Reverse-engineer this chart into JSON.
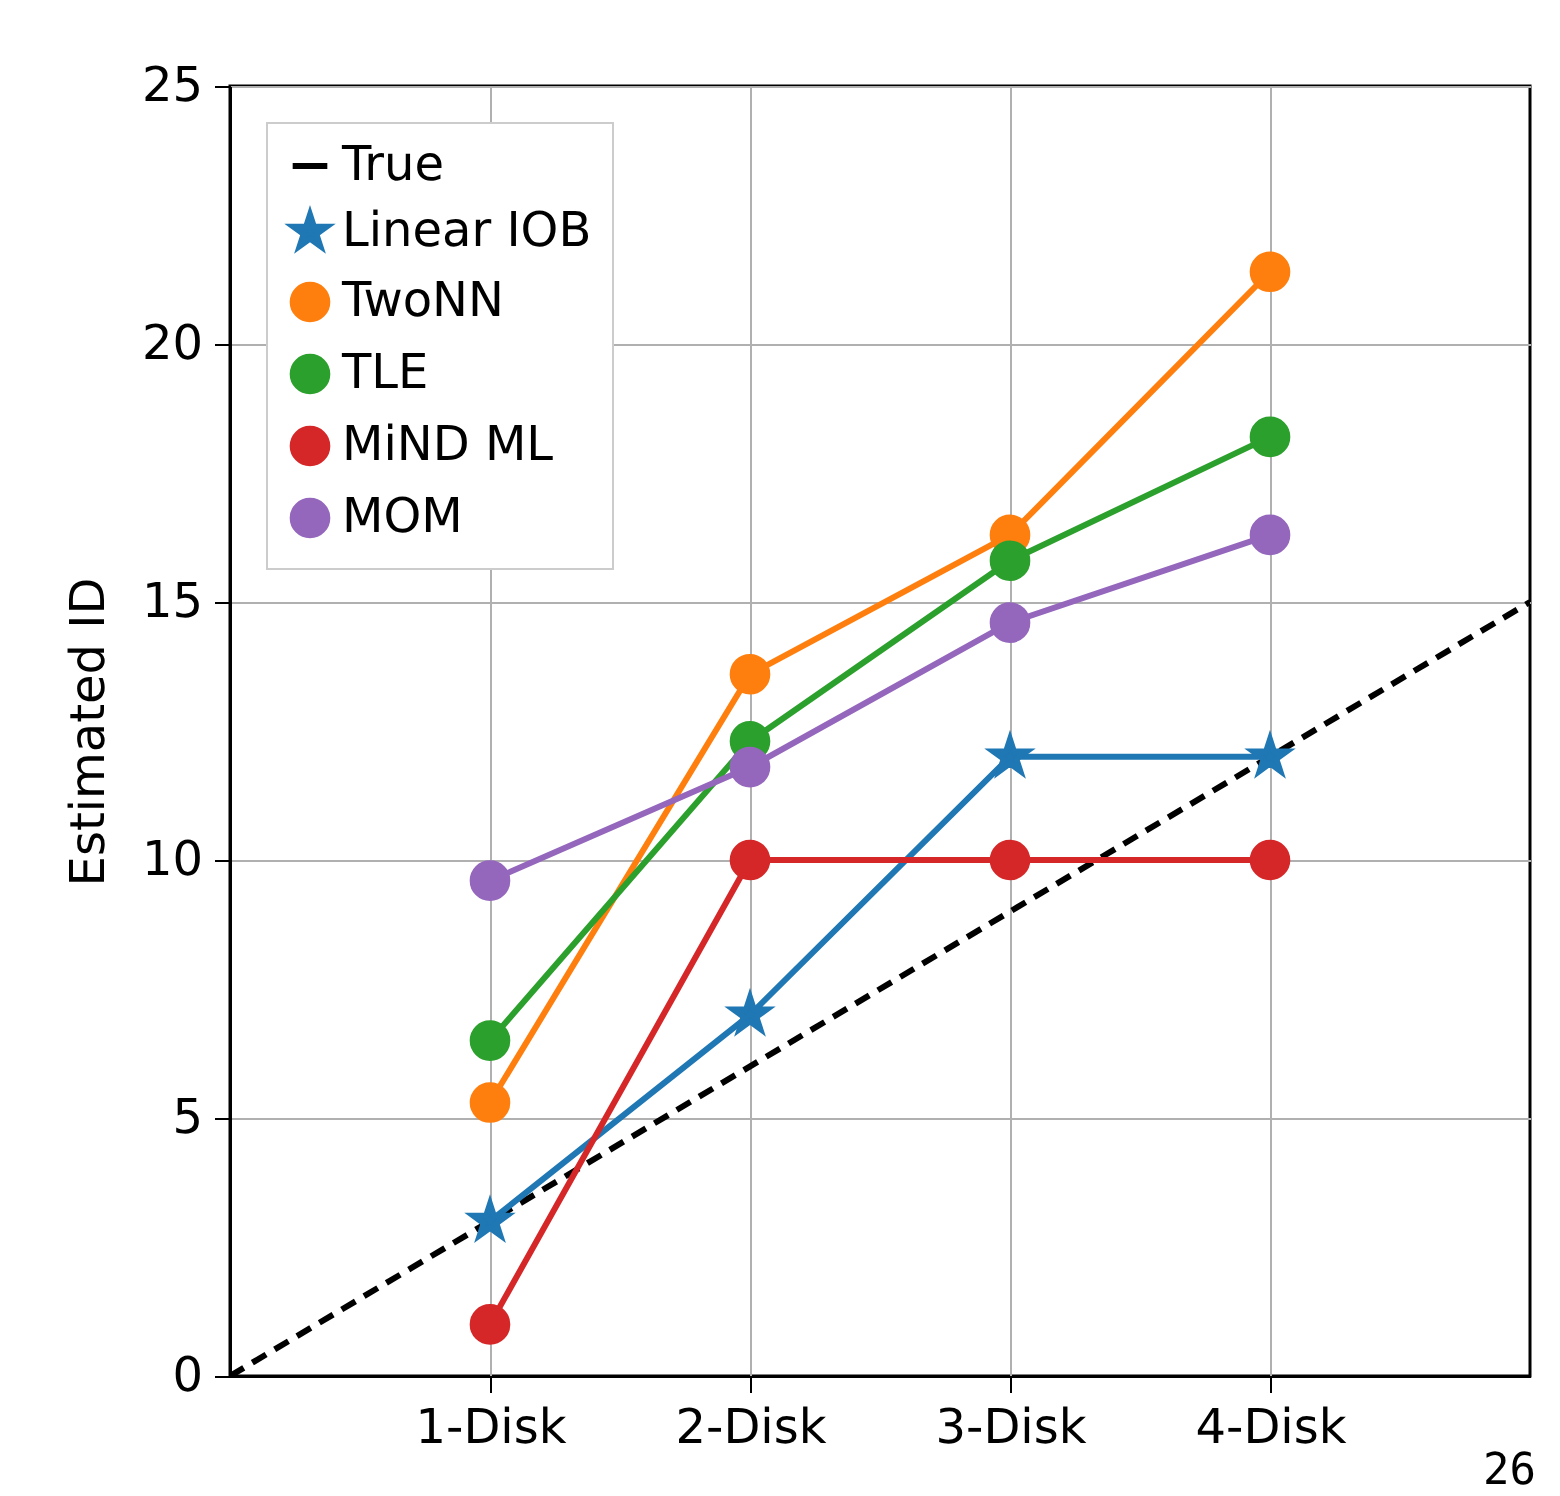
{
  "chart_data": {
    "type": "line",
    "ylabel": "Estimated ID",
    "x": [
      1,
      2,
      3,
      4
    ],
    "xlim": [
      0,
      5
    ],
    "xticks": [
      {
        "value": 1,
        "label": "1-Disk"
      },
      {
        "value": 2,
        "label": "2-Disk"
      },
      {
        "value": 3,
        "label": "3-Disk"
      },
      {
        "value": 4,
        "label": "4-Disk"
      }
    ],
    "ylim": [
      0,
      25
    ],
    "yticks": [
      0,
      5,
      10,
      15,
      20,
      25
    ],
    "grid": true,
    "legend": "top left",
    "series": [
      {
        "name": "True",
        "color": "#000000",
        "x": [
          0,
          5
        ],
        "values": [
          0,
          15
        ],
        "line_style": "dashed",
        "marker": "none"
      },
      {
        "name": "Linear IOB",
        "color": "#1f77b4",
        "values": [
          3,
          7,
          12,
          12
        ],
        "marker": "star"
      },
      {
        "name": "TwoNN",
        "color": "#ff7f0e",
        "values": [
          5.3,
          13.6,
          16.3,
          21.4
        ],
        "marker": "circle"
      },
      {
        "name": "TLE",
        "color": "#2ca02c",
        "values": [
          6.5,
          12.3,
          15.8,
          18.2
        ],
        "marker": "circle"
      },
      {
        "name": "MiND ML",
        "color": "#d62728",
        "values": [
          1,
          10,
          10,
          10
        ],
        "marker": "circle"
      },
      {
        "name": "MOM",
        "color": "#9467bd",
        "values": [
          9.6,
          11.8,
          14.6,
          16.3
        ],
        "marker": "circle"
      }
    ],
    "annotations": [
      "26"
    ]
  }
}
